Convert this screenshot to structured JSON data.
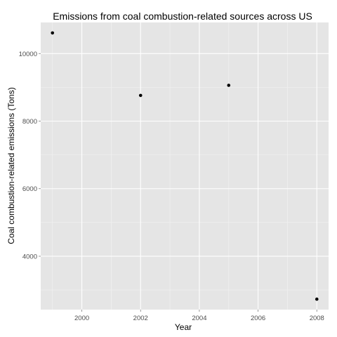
{
  "chart_data": {
    "type": "scatter",
    "title": "Emissions from coal combustion-related sources across US",
    "xlabel": "Year",
    "ylabel": "Coal combustion-related emissions (Tons)",
    "x": [
      1999,
      2002,
      2005,
      2008
    ],
    "y": [
      10610,
      8760,
      9060,
      2730
    ],
    "xlim": [
      1998.6,
      2008.4
    ],
    "ylim": [
      2420,
      10920
    ],
    "xticks": [
      2000,
      2002,
      2004,
      2006,
      2008
    ],
    "xtick_labels": [
      "2000",
      "2002",
      "2004",
      "2006",
      "2008"
    ],
    "yticks": [
      4000,
      6000,
      8000,
      10000
    ],
    "ytick_labels": [
      "4000",
      "6000",
      "8000",
      "10000"
    ],
    "grid": true,
    "panel_background": "#e5e5e5",
    "grid_major_color": "#ffffff",
    "grid_minor_color": "#f2f2f2",
    "point_color": "#000000"
  }
}
